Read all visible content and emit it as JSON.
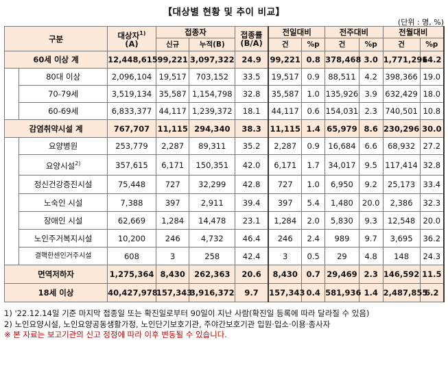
{
  "title": "【대상별 현황 및 추이 비교】",
  "unit": "(단위 : 명, %)",
  "headers": {
    "category": "구분",
    "target": "대상자",
    "target_sup": "1)",
    "target_sub": "(A)",
    "vaccinated": "접종자",
    "new": "신규",
    "cumulative": "누적(B)",
    "rate": "접종률",
    "rate_sub": "(B/A)",
    "prev_day": "전일대비",
    "prev_week": "전주대비",
    "prev_month": "전월대비",
    "count": "건",
    "pp": "%p"
  },
  "rows": [
    {
      "label": "60세 이상 계",
      "cells": [
        "12,448,615",
        "99,221",
        "3,097,322",
        "24.9",
        "99,221",
        "0.8",
        "378,468",
        "3.0",
        "1,771,296",
        "14.2"
      ]
    },
    {
      "label": "80대 이상",
      "cells": [
        "2,096,104",
        "19,517",
        "703,152",
        "33.5",
        "19,517",
        "0.9",
        "88,511",
        "4.2",
        "398,366",
        "19.0"
      ]
    },
    {
      "label": "70-79세",
      "cells": [
        "3,519,134",
        "35,587",
        "1,154,798",
        "32.8",
        "35,587",
        "1.0",
        "135,926",
        "3.9",
        "632,429",
        "18.0"
      ]
    },
    {
      "label": "60-69세",
      "cells": [
        "6,833,377",
        "44,117",
        "1,239,372",
        "18.1",
        "44,117",
        "0.6",
        "154,031",
        "2.3",
        "740,501",
        "10.8"
      ]
    },
    {
      "label": "감염취약시설 계",
      "cells": [
        "767,707",
        "11,115",
        "294,340",
        "38.3",
        "11,115",
        "1.4",
        "65,979",
        "8.6",
        "230,296",
        "30.0"
      ]
    },
    {
      "label": "요양병원",
      "cells": [
        "253,779",
        "2,287",
        "89,311",
        "35.2",
        "2,287",
        "0.9",
        "16,684",
        "6.6",
        "68,932",
        "27.2"
      ]
    },
    {
      "label": "요양시설",
      "label_sup": "2)",
      "cells": [
        "357,615",
        "6,171",
        "150,351",
        "42.0",
        "6,171",
        "1.7",
        "34,017",
        "9.5",
        "117,414",
        "32.8"
      ]
    },
    {
      "label": "정신건강증진시설",
      "cells": [
        "75,448",
        "727",
        "32,299",
        "42.8",
        "727",
        "1.0",
        "6,950",
        "9.2",
        "25,173",
        "33.4"
      ]
    },
    {
      "label": "노숙인 시설",
      "cells": [
        "7,388",
        "397",
        "2,911",
        "39.4",
        "397",
        "5.4",
        "1,480",
        "20.0",
        "2,386",
        "32.3"
      ]
    },
    {
      "label": "장애인 시설",
      "cells": [
        "62,669",
        "1,284",
        "14,478",
        "23.1",
        "1,284",
        "2.0",
        "5,830",
        "9.3",
        "12,548",
        "20.0"
      ]
    },
    {
      "label": "노인주거복지시설",
      "cells": [
        "10,200",
        "246",
        "4,732",
        "46.4",
        "246",
        "2.4",
        "989",
        "9.7",
        "3,695",
        "36.2"
      ]
    },
    {
      "label": "결핵한센인거주시설",
      "cells": [
        "608",
        "3",
        "258",
        "42.4",
        "3",
        "0.5",
        "29",
        "4.8",
        "148",
        "24.3"
      ]
    },
    {
      "label": "면역저하자",
      "cells": [
        "1,275,364",
        "8,430",
        "262,363",
        "20.6",
        "8,430",
        "0.7",
        "29,469",
        "2.3",
        "146,592",
        "11.5"
      ]
    },
    {
      "label": "18세 이상",
      "cells": [
        "40,427,978",
        "157,343",
        "3,916,372",
        "9.7",
        "157,343",
        "0.4",
        "581,936",
        "1.4",
        "2,487,855",
        "6.2"
      ]
    }
  ],
  "notes": [
    "1) '22.12.14일 기준 마지막 접종일 또는 확진일로부터 90일이 지난 사람(확진일 등록에 따라 달라질 수 있음)",
    "2) 노인요양시설, 노인요양공동생활가정, 노인단기보호기관, 주야간보호기관 입원·입소·이용·종사자",
    "※ 본 자료는 보고기관의 신고 정정에 따라 이후 변동될 수 있습니다."
  ]
}
